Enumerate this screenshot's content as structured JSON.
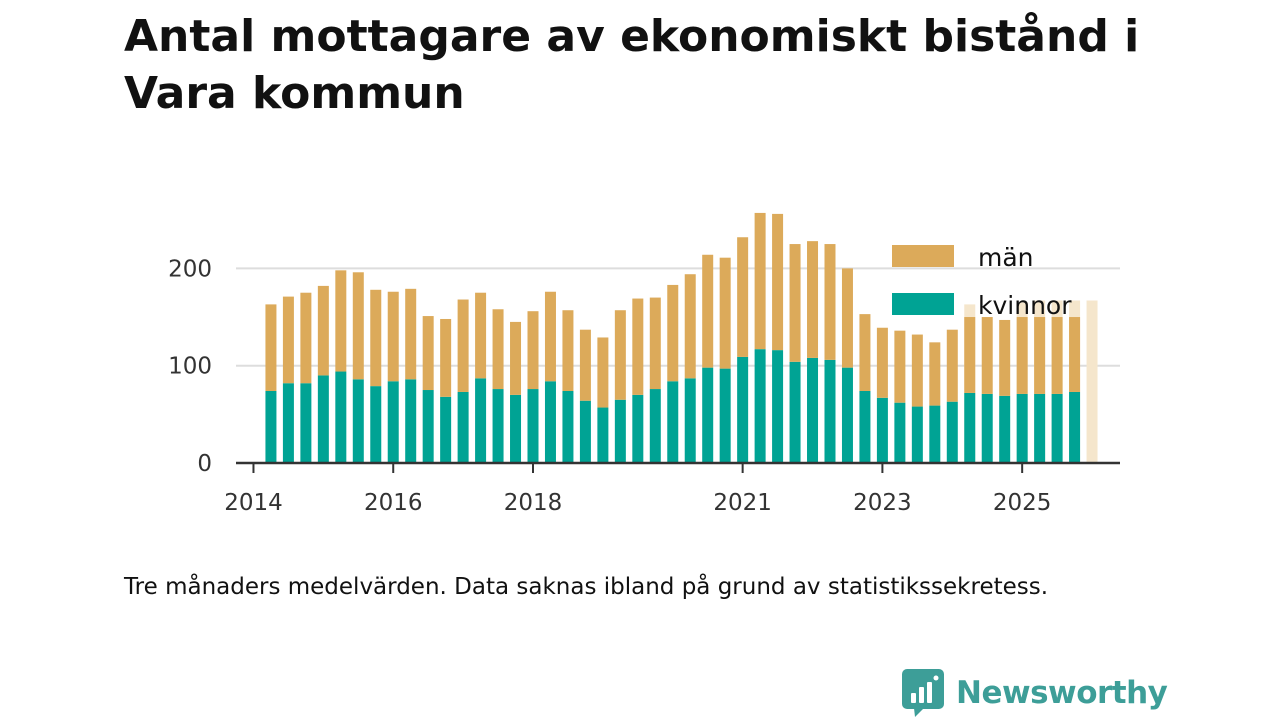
{
  "title": "Antal mottagare av ekonomiskt bistånd i Vara kommun",
  "footnote": "Tre månaders medelvärden. Data saknas ibland på grund av statistikssekretess.",
  "brand": {
    "name": "Newsworthy",
    "icon": "newsworthy-logo-icon",
    "color": "#3d9e98"
  },
  "colors": {
    "men": "#dcaa5a",
    "women": "#00a394",
    "gridline": "#dddddd",
    "axis": "#333333",
    "missing": "#f5e6cc"
  },
  "chart_data": {
    "type": "bar",
    "stacked": true,
    "title": "Antal mottagare av ekonomiskt bistånd i Vara kommun",
    "xlabel": "",
    "ylabel": "",
    "ylim": [
      0,
      260
    ],
    "yticks": [
      0,
      100,
      200
    ],
    "x_range": [
      2013.75,
      2026.4
    ],
    "xticks": [
      {
        "value": 2014.0,
        "label": "2014"
      },
      {
        "value": 2016.0,
        "label": "2016"
      },
      {
        "value": 2018.0,
        "label": "2018"
      },
      {
        "value": 2021.0,
        "label": "2021"
      },
      {
        "value": 2023.0,
        "label": "2023"
      },
      {
        "value": 2025.0,
        "label": "2025"
      }
    ],
    "grid": true,
    "legend": {
      "placement": "top-right",
      "entries": [
        {
          "key": "men",
          "label": "män"
        },
        {
          "key": "women",
          "label": "kvinnor"
        }
      ]
    },
    "quarters": [
      "2014 Q2",
      "2014 Q3",
      "2014 Q4",
      "2015 Q1",
      "2015 Q2",
      "2015 Q3",
      "2015 Q4",
      "2016 Q1",
      "2016 Q2",
      "2016 Q3",
      "2016 Q4",
      "2017 Q1",
      "2017 Q2",
      "2017 Q3",
      "2017 Q4",
      "2018 Q1",
      "2018 Q2",
      "2018 Q3",
      "2018 Q4",
      "2019 Q1",
      "2019 Q2",
      "2019 Q3",
      "2019 Q4",
      "2020 Q1",
      "2020 Q2",
      "2020 Q3",
      "2020 Q4",
      "2021 Q1",
      "2021 Q2",
      "2021 Q3",
      "2021 Q4",
      "2022 Q1",
      "2022 Q2",
      "2022 Q3",
      "2022 Q4",
      "2023 Q1",
      "2023 Q2",
      "2023 Q3",
      "2023 Q4",
      "2024 Q1",
      "2024 Q2",
      "2024 Q3",
      "2024 Q4",
      "2025 Q1",
      "2025 Q2",
      "2025 Q3",
      "2025 Q4",
      "2026 Q1"
    ],
    "x": [
      2014.25,
      2014.5,
      2014.75,
      2015.0,
      2015.25,
      2015.5,
      2015.75,
      2016.0,
      2016.25,
      2016.5,
      2016.75,
      2017.0,
      2017.25,
      2017.5,
      2017.75,
      2018.0,
      2018.25,
      2018.5,
      2018.75,
      2019.0,
      2019.25,
      2019.5,
      2019.75,
      2020.0,
      2020.25,
      2020.5,
      2020.75,
      2021.0,
      2021.25,
      2021.5,
      2021.75,
      2022.0,
      2022.25,
      2022.5,
      2022.75,
      2023.0,
      2023.25,
      2023.5,
      2023.75,
      2024.0,
      2024.25,
      2024.5,
      2024.75,
      2025.0,
      2025.25,
      2025.5,
      2025.75,
      2026.0
    ],
    "series": [
      {
        "name": "kvinnor",
        "key": "women",
        "values": [
          74,
          82,
          82,
          90,
          94,
          86,
          79,
          84,
          86,
          75,
          68,
          73,
          87,
          76,
          70,
          76,
          84,
          74,
          64,
          57,
          65,
          70,
          76,
          84,
          87,
          98,
          97,
          109,
          117,
          116,
          104,
          108,
          106,
          98,
          74,
          67,
          62,
          58,
          59,
          63,
          72,
          71,
          69,
          71,
          71,
          71,
          73,
          null
        ]
      },
      {
        "name": "män",
        "key": "men",
        "values": [
          89,
          89,
          93,
          92,
          104,
          110,
          99,
          92,
          93,
          76,
          80,
          95,
          88,
          82,
          75,
          80,
          92,
          83,
          73,
          72,
          92,
          99,
          94,
          99,
          107,
          116,
          114,
          123,
          140,
          140,
          121,
          120,
          119,
          102,
          79,
          72,
          74,
          74,
          65,
          74,
          78,
          79,
          78,
          79,
          79,
          79,
          77,
          null
        ]
      }
    ],
    "missing_bars_top": [
      null,
      null,
      null,
      null,
      null,
      null,
      null,
      null,
      null,
      null,
      null,
      null,
      null,
      null,
      null,
      null,
      null,
      null,
      null,
      null,
      null,
      null,
      null,
      null,
      null,
      null,
      null,
      null,
      null,
      null,
      null,
      null,
      null,
      null,
      null,
      null,
      null,
      null,
      null,
      null,
      163,
      null,
      null,
      165,
      167,
      167,
      167,
      167
    ]
  }
}
